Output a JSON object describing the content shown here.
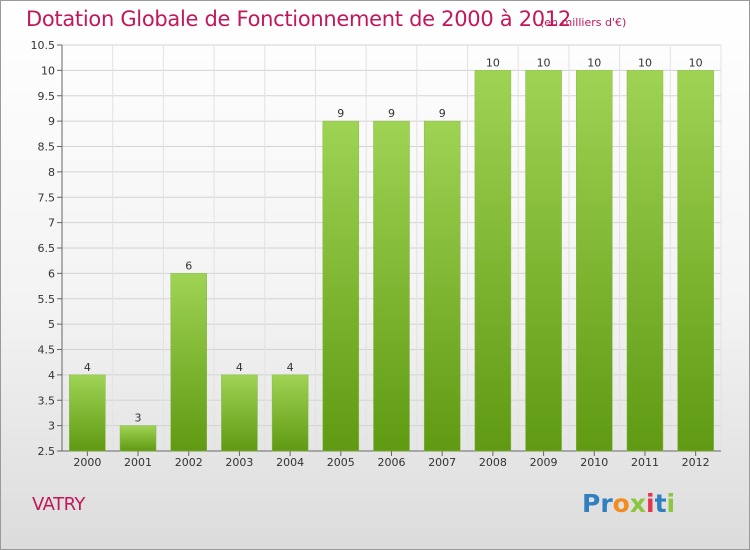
{
  "title": "Dotation Globale de Fonctionnement de 2000 à 2012",
  "unit": "(en milliers d'€)",
  "commune": "VATRY",
  "logo": {
    "letters": [
      "P",
      "r",
      "o",
      "x",
      "i",
      "t",
      "i"
    ],
    "colors": [
      "#2f7fc1",
      "#2f7fc1",
      "#f28c1e",
      "#8cc63f",
      "#e6344f",
      "#2f7fc1",
      "#8cc63f"
    ]
  },
  "colors": {
    "bar_top": "#9fd354",
    "bar_bottom": "#5f9a12",
    "title": "#c2185b"
  },
  "chart_data": {
    "type": "bar",
    "categories": [
      "2000",
      "2001",
      "2002",
      "2003",
      "2004",
      "2005",
      "2006",
      "2007",
      "2008",
      "2009",
      "2010",
      "2011",
      "2012"
    ],
    "values": [
      4,
      3,
      6,
      4,
      4,
      9,
      9,
      9,
      10,
      10,
      10,
      10,
      10
    ],
    "data_labels": [
      "4",
      "3",
      "6",
      "4",
      "4",
      "9",
      "9",
      "9",
      "10",
      "10",
      "10",
      "10",
      "10"
    ],
    "ylim": [
      2.5,
      10.5
    ],
    "yticks": [
      2.5,
      3,
      3.5,
      4,
      4.5,
      5,
      5.5,
      6,
      6.5,
      7,
      7.5,
      8,
      8.5,
      9,
      9.5,
      10,
      10.5
    ],
    "ytick_labels": [
      "2.5",
      "3",
      "3.5",
      "4",
      "4.5",
      "5",
      "5.5",
      "6",
      "6.5",
      "7",
      "7.5",
      "8",
      "8.5",
      "9",
      "9.5",
      "10",
      "10.5"
    ],
    "grid": true,
    "xlabel": "",
    "ylabel": ""
  }
}
